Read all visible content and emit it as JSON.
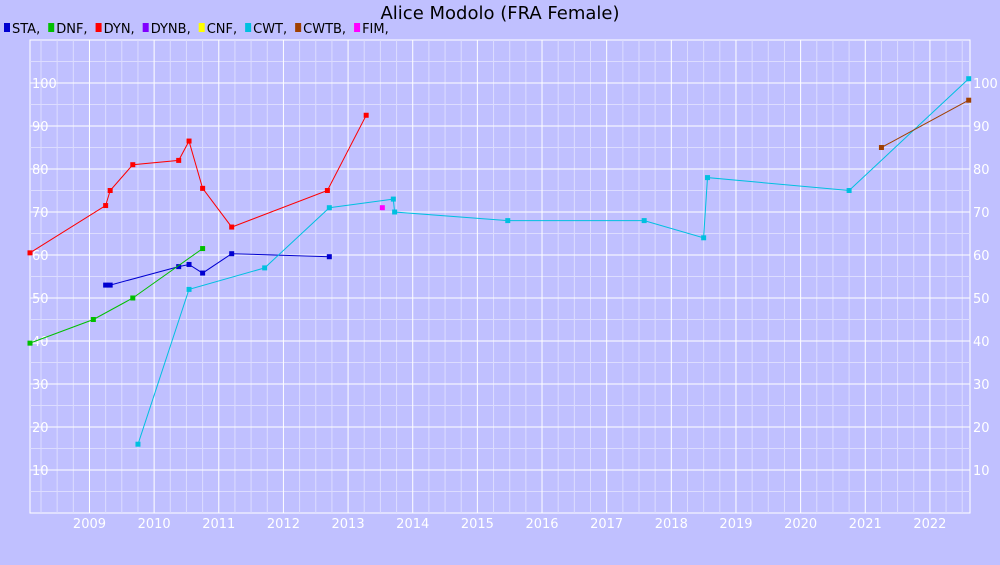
{
  "chart_data": {
    "type": "line",
    "title": "Alice Modolo (FRA Female)",
    "xlabel": "",
    "ylabel": "",
    "xlim": [
      2008.08,
      2022.62
    ],
    "ylim": [
      0,
      110
    ],
    "x_ticks": [
      2009,
      2010,
      2011,
      2012,
      2013,
      2014,
      2015,
      2016,
      2017,
      2018,
      2019,
      2020,
      2021,
      2022
    ],
    "x_tick_labels": [
      "2009",
      "2010",
      "2011",
      "2012",
      "2013",
      "2014",
      "2015",
      "2016",
      "2017",
      "2018",
      "2019",
      "2020",
      "2021",
      "2022"
    ],
    "y_ticks": [
      10,
      20,
      30,
      40,
      50,
      60,
      70,
      80,
      90,
      100
    ],
    "y_tick_labels": [
      "10",
      "20",
      "30",
      "40",
      "50",
      "60",
      "70",
      "80",
      "90",
      "100"
    ],
    "grid": true,
    "legend_position": "top-left",
    "series": [
      {
        "name": "STA",
        "color": "#0000d0",
        "points": [
          [
            2009.25,
            53
          ],
          [
            2009.32,
            53
          ],
          [
            2010.38,
            57.3
          ],
          [
            2010.54,
            57.8
          ],
          [
            2010.75,
            55.8
          ],
          [
            2011.2,
            60.3
          ],
          [
            2012.71,
            59.6
          ]
        ]
      },
      {
        "name": "DNF",
        "color": "#00c000",
        "points": [
          [
            2008.08,
            39.5
          ],
          [
            2009.06,
            45
          ],
          [
            2009.67,
            50
          ],
          [
            2010.75,
            61.5
          ]
        ]
      },
      {
        "name": "DYN",
        "color": "#ff0000",
        "points": [
          [
            2008.08,
            60.5
          ],
          [
            2009.25,
            71.5
          ],
          [
            2009.32,
            75
          ],
          [
            2009.67,
            81
          ],
          [
            2010.38,
            82
          ],
          [
            2010.54,
            86.5
          ],
          [
            2010.75,
            75.5
          ],
          [
            2011.2,
            66.5
          ],
          [
            2012.68,
            75
          ],
          [
            2013.28,
            92.5
          ]
        ]
      },
      {
        "name": "DYNB",
        "color": "#8000ff",
        "points": []
      },
      {
        "name": "CNF",
        "color": "#ffff00",
        "points": []
      },
      {
        "name": "CWT",
        "color": "#00c0e0",
        "points": [
          [
            2009.75,
            16
          ],
          [
            2010.54,
            52
          ],
          [
            2011.71,
            57
          ],
          [
            2012.71,
            71
          ],
          [
            2013.7,
            73
          ],
          [
            2013.72,
            70
          ],
          [
            2015.47,
            68
          ],
          [
            2017.58,
            68
          ],
          [
            2018.5,
            64
          ],
          [
            2018.56,
            78
          ],
          [
            2020.75,
            75
          ],
          [
            2022.6,
            101
          ]
        ]
      },
      {
        "name": "CWTB",
        "color": "#a04000",
        "points": [
          [
            2021.25,
            85
          ],
          [
            2022.6,
            96
          ]
        ]
      },
      {
        "name": "FIM",
        "color": "#ff00ff",
        "points": [
          [
            2013.53,
            71
          ]
        ]
      }
    ]
  }
}
